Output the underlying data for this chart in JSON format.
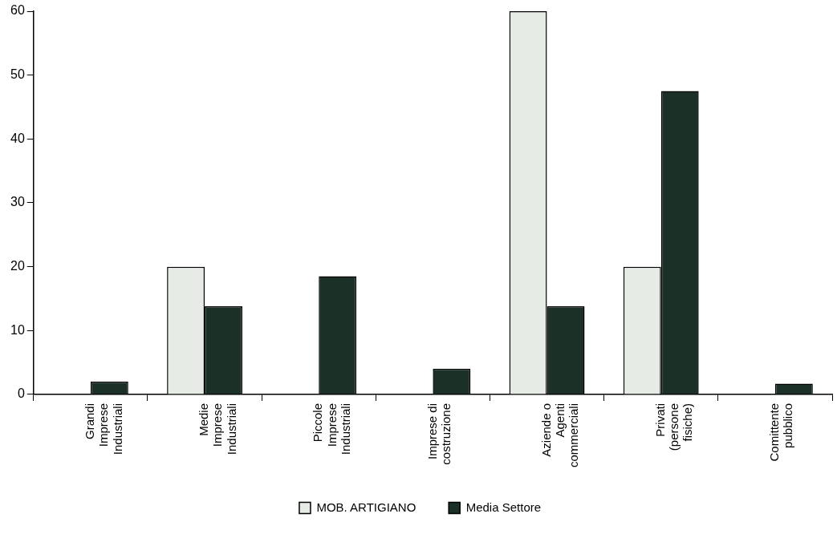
{
  "chart_data": {
    "type": "bar",
    "categories": [
      "Grandi\nImprese\nIndustriali",
      "Medie\nImprese\nIndustriali",
      "Piccole\nImprese\nIndustriali",
      "Imprese di\ncostruzione",
      "Aziende o\nAgenti\ncommerciali",
      "Privati\n(persone\nfisiche)",
      "Comittente\npubblico"
    ],
    "series": [
      {
        "name": "MOB. ARTIGIANO",
        "color": "#e6ebe6",
        "values": [
          0,
          20,
          0,
          0,
          60,
          20,
          0
        ]
      },
      {
        "name": "Media Settore",
        "color": "#1b3127",
        "values": [
          2,
          13.8,
          18.5,
          4,
          13.8,
          47.5,
          1.7
        ]
      }
    ],
    "ylim": [
      0,
      60
    ],
    "yticks": [
      0,
      10,
      20,
      30,
      40,
      50,
      60
    ],
    "grid": false,
    "legend": "bottom"
  }
}
